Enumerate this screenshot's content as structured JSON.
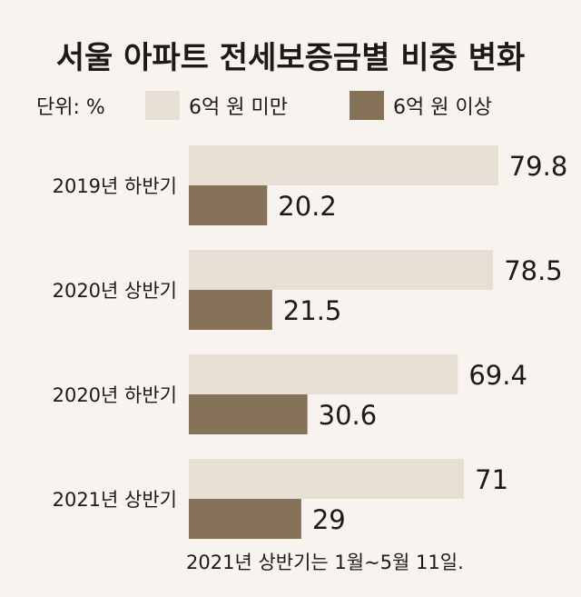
{
  "chart_data": {
    "type": "bar",
    "orientation": "horizontal",
    "title": "서울 아파트 전세보증금별 비중 변화",
    "unit_label": "단위: %",
    "categories": [
      "2019년 하반기",
      "2020년 상반기",
      "2020년 하반기",
      "2021년 상반기"
    ],
    "series": [
      {
        "name": "6억 원 미만",
        "values": [
          79.8,
          78.5,
          69.4,
          71
        ],
        "labels": [
          "79.8",
          "78.5",
          "69.4",
          "71"
        ]
      },
      {
        "name": "6억 원 이상",
        "values": [
          20.2,
          21.5,
          30.6,
          29
        ],
        "labels": [
          "20.2",
          "21.5",
          "30.6",
          "29"
        ]
      }
    ],
    "xlim": [
      0,
      100
    ],
    "grid": false,
    "legend_position": "top",
    "footnote": "2021년 상반기는 1월~5월 11일.",
    "colors": {
      "series_0": "#e7dfd3",
      "series_1": "#857258",
      "background": "#f7f3ee"
    }
  }
}
